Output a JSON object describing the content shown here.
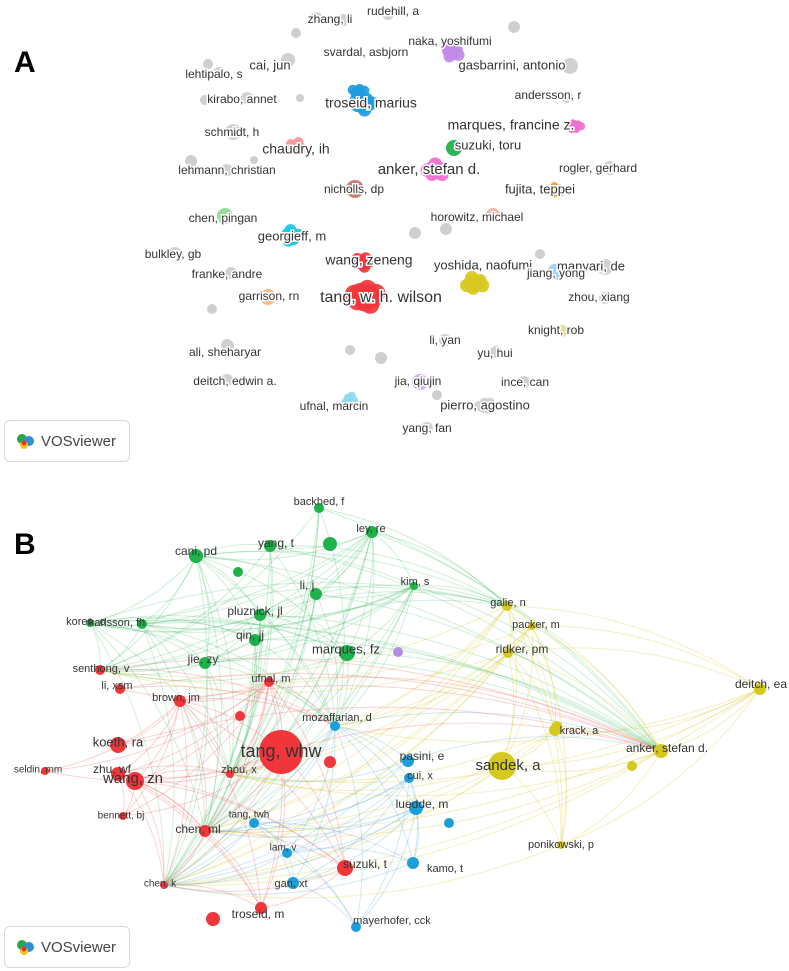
{
  "panel_a": {
    "letter": "A",
    "brand": "VOSviewer",
    "colors": {
      "gray": "#cfcfcf",
      "blue": "#1f9be0",
      "red": "#f0363b",
      "yellow": "#d8c821",
      "green": "#21b24b",
      "pink": "#f06fd0",
      "purple": "#c28ae6",
      "cyan": "#17c9e6",
      "orange": "#f79a31",
      "brown": "#c47766",
      "salmon": "#f49a9a",
      "lightgreen": "#8fdc8f",
      "lightblue": "#9fd4f5",
      "peach": "#f7b883",
      "olive": "#e2dc8a",
      "lavender": "#cfa8e8",
      "skyblue": "#8fdaf0",
      "lightsalmon": "#f2b6a6"
    },
    "nodes": [
      {
        "label": "zhang, li",
        "color": "gray"
      },
      {
        "label": "rudehill, a",
        "color": "gray"
      },
      {
        "label": "naka, yoshifumi",
        "color": "purple"
      },
      {
        "label": "gasbarrini, antonio",
        "color": "gray"
      },
      {
        "label": "cai, jun",
        "color": "gray"
      },
      {
        "label": "svardal, asbjorn",
        "color": "blue"
      },
      {
        "label": "lehtipalo, s",
        "color": "gray"
      },
      {
        "label": "kirabo, annet",
        "color": "gray"
      },
      {
        "label": "troseid, marius",
        "color": "blue"
      },
      {
        "label": "andersson, r",
        "color": "gray"
      },
      {
        "label": "marques, francine z.",
        "color": "pink"
      },
      {
        "label": "schmidt, h",
        "color": "gray"
      },
      {
        "label": "chaudry, ih",
        "color": "salmon"
      },
      {
        "label": "suzuki, toru",
        "color": "green"
      },
      {
        "label": "anker, stefan d.",
        "color": "pink"
      },
      {
        "label": "lehmann, christian",
        "color": "gray"
      },
      {
        "label": "rogler, gerhard",
        "color": "gray"
      },
      {
        "label": "nicholls, dp",
        "color": "brown"
      },
      {
        "label": "fujita, teppei",
        "color": "orange"
      },
      {
        "label": "chen, pingan",
        "color": "lightgreen"
      },
      {
        "label": "horowitz, michael",
        "color": "lightsalmon"
      },
      {
        "label": "georgieff, m",
        "color": "cyan"
      },
      {
        "label": "manyari, de",
        "color": "gray"
      },
      {
        "label": "bulkley, gb",
        "color": "gray"
      },
      {
        "label": "wang, zeneng",
        "color": "red"
      },
      {
        "label": "yoshida, naofumi",
        "color": "yellow"
      },
      {
        "label": "franke, andre",
        "color": "gray"
      },
      {
        "label": "jiang, yong",
        "color": "lightblue"
      },
      {
        "label": "garrison, rn",
        "color": "peach"
      },
      {
        "label": "tang, w. h. wilson",
        "color": "red"
      },
      {
        "label": "zhou, xiang",
        "color": "gray"
      },
      {
        "label": "knight, rob",
        "color": "olive"
      },
      {
        "label": "li, yan",
        "color": "gray"
      },
      {
        "label": "ali, sheharyar",
        "color": "gray"
      },
      {
        "label": "yu, hui",
        "color": "gray"
      },
      {
        "label": "deitch, edwin a.",
        "color": "gray"
      },
      {
        "label": "jia, qiujin",
        "color": "lavender"
      },
      {
        "label": "ince, can",
        "color": "gray"
      },
      {
        "label": "ufnal, marcin",
        "color": "skyblue"
      },
      {
        "label": "pierro, agostino",
        "color": "gray"
      },
      {
        "label": "yang, fan",
        "color": "gray"
      }
    ]
  },
  "panel_b": {
    "letter": "B",
    "brand": "VOSviewer",
    "colors": {
      "red": "#f0363b",
      "green": "#1fb24a",
      "blue": "#1c9ed8",
      "yellow": "#d7c81f",
      "purple": "#b68de0"
    },
    "nodes": [
      {
        "label": "backhed, f",
        "color": "green"
      },
      {
        "label": "ley, re",
        "color": "green"
      },
      {
        "label": "cani, pd",
        "color": "green"
      },
      {
        "label": "yang, t",
        "color": "green"
      },
      {
        "label": "kim, s",
        "color": "green"
      },
      {
        "label": "pluznick, jl",
        "color": "green"
      },
      {
        "label": "li, j",
        "color": "green"
      },
      {
        "label": "karlsson, fh",
        "color": "green"
      },
      {
        "label": "koren, o",
        "color": "green"
      },
      {
        "label": "qin, jj",
        "color": "green"
      },
      {
        "label": "galie, n",
        "color": "yellow"
      },
      {
        "label": "packer, m",
        "color": "yellow"
      },
      {
        "label": "jie, zy",
        "color": "green"
      },
      {
        "label": "marques, fz",
        "color": "green"
      },
      {
        "label": "ridker, pm",
        "color": "yellow"
      },
      {
        "label": "senthong, v",
        "color": "red"
      },
      {
        "label": "ufnal, m",
        "color": "red"
      },
      {
        "label": "deitch, ea",
        "color": "yellow"
      },
      {
        "label": "li, xsm",
        "color": "red"
      },
      {
        "label": "brown, jm",
        "color": "red"
      },
      {
        "label": "mozaffarian, d",
        "color": "blue"
      },
      {
        "label": "koeth, ra",
        "color": "red"
      },
      {
        "label": "tang, whw",
        "color": "red"
      },
      {
        "label": "krack, a",
        "color": "yellow"
      },
      {
        "label": "pasini, e",
        "color": "blue"
      },
      {
        "label": "anker, stefan d.",
        "color": "yellow"
      },
      {
        "label": "sandek, a",
        "color": "yellow"
      },
      {
        "label": "seldin, mm",
        "color": "red"
      },
      {
        "label": "zhu, wf",
        "color": "red"
      },
      {
        "label": "wang, zn",
        "color": "red"
      },
      {
        "label": "zhou, x",
        "color": "red"
      },
      {
        "label": "cui, x",
        "color": "blue"
      },
      {
        "label": "luedde, m",
        "color": "blue"
      },
      {
        "label": "bennett, bj",
        "color": "red"
      },
      {
        "label": "tang, twh",
        "color": "blue"
      },
      {
        "label": "chen, ml",
        "color": "red"
      },
      {
        "label": "ponikowski, p",
        "color": "yellow"
      },
      {
        "label": "lam, v",
        "color": "blue"
      },
      {
        "label": "suzuki, t",
        "color": "red"
      },
      {
        "label": "kamo, t",
        "color": "blue"
      },
      {
        "label": "chen, k",
        "color": "red"
      },
      {
        "label": "gan, xt",
        "color": "blue"
      },
      {
        "label": "troseid, m",
        "color": "red"
      },
      {
        "label": "mayerhofer, cck",
        "color": "blue"
      }
    ]
  }
}
